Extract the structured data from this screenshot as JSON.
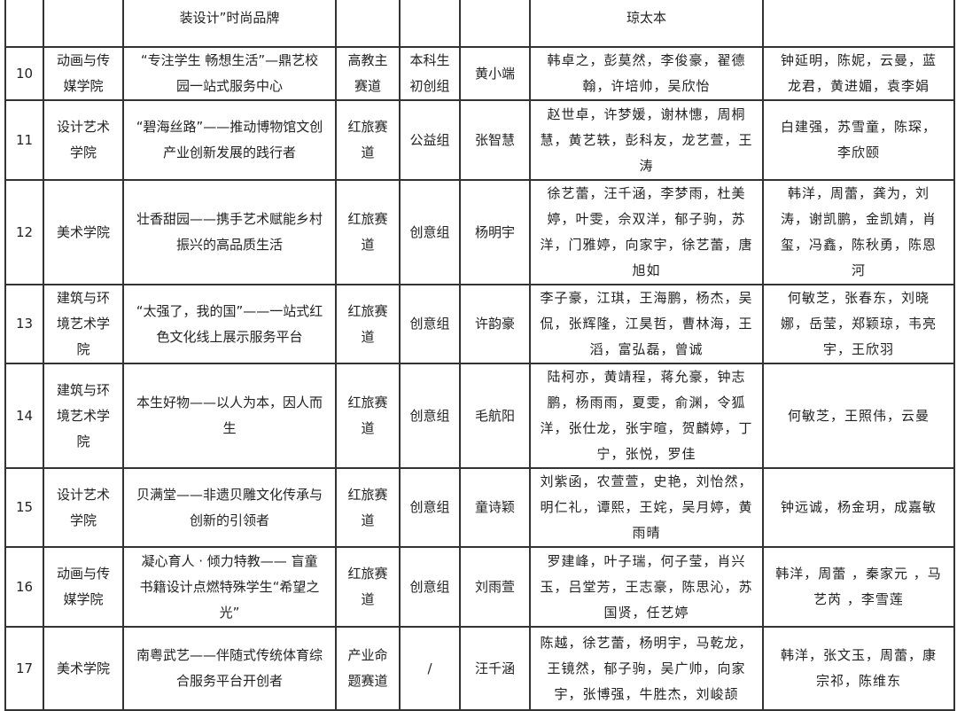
{
  "header_row": {
    "project": "装设计”时尚品牌",
    "members": "琼太本",
    "advisors": ""
  },
  "rows": [
    {
      "no": "10",
      "college": "动画与传媒学院",
      "project": "“专注学生 畅想生活”—鼎艺校园一站式服务中心",
      "track": "高教主赛道",
      "group": "本科生初创组",
      "leader": "黄小端",
      "members": "韩卓之，彭莫然，李俊豪，翟德翰，许培帅，吴欣怡",
      "advisors": "钟延明，陈妮，云曼，蓝龙君，黄进媚，袁李娟"
    },
    {
      "no": "11",
      "college": "设计艺术学院",
      "project": "“碧海丝路”——推动博物馆文创产业创新发展的践行者",
      "track": "红旅赛道",
      "group": "公益组",
      "leader": "张智慧",
      "members": "赵世卓，许梦媛，谢林憓，周桐慧，黄艺轶，彭科友，龙艺萱，王涛",
      "advisors": "白建强，苏雪童，陈琛，李欣颐"
    },
    {
      "no": "12",
      "college": "美术学院",
      "project": "壮香甜园——携手艺术赋能乡村振兴的高品质生活",
      "track": "红旅赛道",
      "group": "创意组",
      "leader": "杨明宇",
      "members": "徐艺蕾，汪千涵，李梦雨，杜美婷，叶雯，佘双洋，郁子驹，苏洋，门雅婷，向家宇，徐艺蕾，唐旭如",
      "advisors": "韩洋，周蕾，龚为，刘涛，谢凯鹏，金凯婧，肖玺，冯鑫，陈秋勇，陈恩河"
    },
    {
      "no": "13",
      "college": "建筑与环境艺术学院",
      "project": "“太强了，我的国”——一站式红色文化线上展示服务平台",
      "track": "红旅赛道",
      "group": "创意组",
      "leader": "许韵豪",
      "members": "李子豪，江琪，王海鹏，杨杰，吴侃，张辉隆，江昊哲，曹林海，王滔，富弘磊，曾诚",
      "advisors": "何敏芝，张春东，刘晓娜，岳莹，郑颖琼，韦亮宇，王欣羽"
    },
    {
      "no": "14",
      "college": "建筑与环境艺术学院",
      "project": "本生好物——以人为本，因人而生",
      "track": "红旅赛道",
      "group": "创意组",
      "leader": "毛航阳",
      "members": "陆柯亦，黄靖程，蒋允豪，钟志鹏，杨雨雨，夏雯，俞渊，令狐洋，张仕龙，张宇暄，贺麟婷，丁宁，张悦，罗佳",
      "advisors": "何敏芝，王照伟，云曼"
    },
    {
      "no": "15",
      "college": "设计艺术学院",
      "project": "贝满堂——非遗贝雕文化传承与创新的引领者",
      "track": "红旅赛道",
      "group": "创意组",
      "leader": "童诗颖",
      "members": "刘紫函，农萱萱，史艳，刘怡然，明仁礼，谭熙，王姹，吴月婷，黄雨晴",
      "advisors": "钟远诚，杨金玥，成嘉敏"
    },
    {
      "no": "16",
      "college": "动画与传媒学院",
      "project": "凝心育人 · 倾力特教—— 盲童书籍设计点燃特殊学生“希望之光”",
      "track": "红旅赛道",
      "group": "创意组",
      "leader": "刘雨萱",
      "members": "罗建峰，叶子瑞，何子莹，肖兴玉，吕堂芳，王志豪，陈思沁，苏国贤，任艺婷",
      "advisors": "韩洋，周蕾 ，秦家元 ，马艺芮 ，李雪莲"
    },
    {
      "no": "17",
      "college": "美术学院",
      "project": "南粤武艺——伴随式传统体育综合服务平台开创者",
      "track": "产业命题赛道",
      "group": "/",
      "leader": "汪千涵",
      "members": "陈越，徐艺蕾，杨明宇，马乾龙，王镜然，郁子驹，吴广帅，向家宇，张博强，牛胜杰，刘峻颉",
      "advisors": "韩洋，张文玉，周蕾，康宗祁，陈维东"
    }
  ]
}
